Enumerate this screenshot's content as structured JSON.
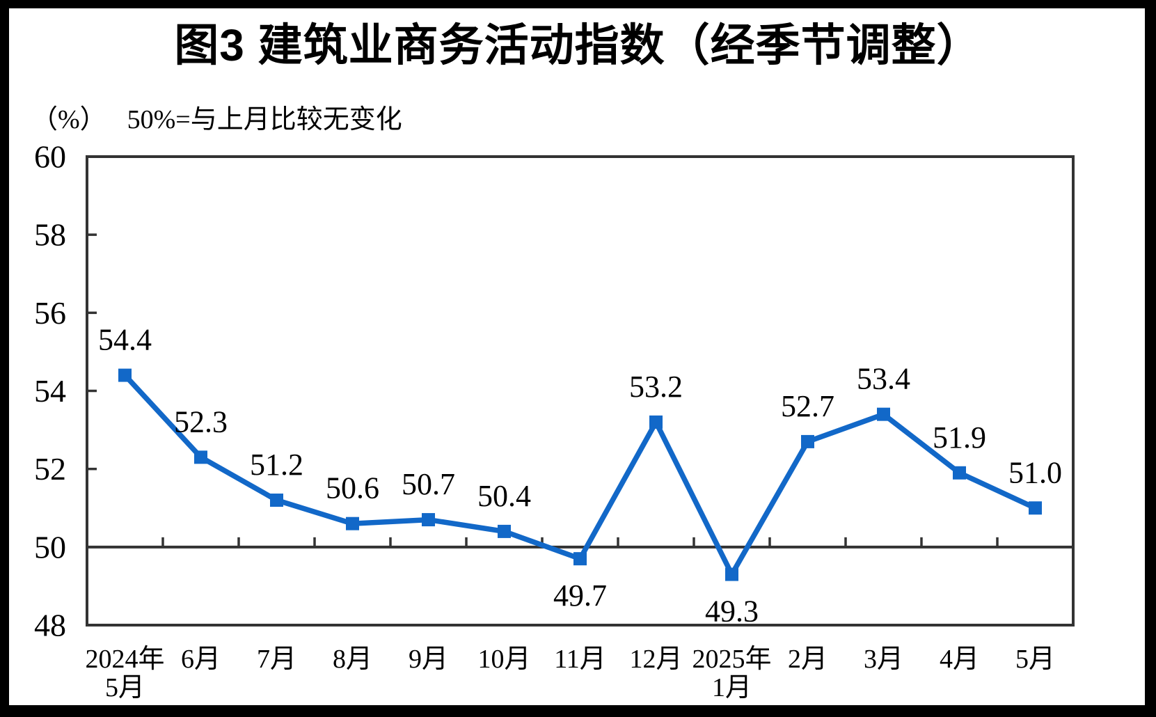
{
  "page": {
    "background": "#000000",
    "paper": "#ffffff"
  },
  "chart_data": {
    "type": "line",
    "title": "图3  建筑业商务活动指数（经季节调整）",
    "unit_label": "（%）",
    "annotation": "50%=与上月比较无变化",
    "categories": [
      [
        "2024年",
        "5月"
      ],
      [
        "6月"
      ],
      [
        "7月"
      ],
      [
        "8月"
      ],
      [
        "9月"
      ],
      [
        "10月"
      ],
      [
        "11月"
      ],
      [
        "12月"
      ],
      [
        "2025年",
        "1月"
      ],
      [
        "2月"
      ],
      [
        "3月"
      ],
      [
        "4月"
      ],
      [
        "5月"
      ]
    ],
    "values": [
      54.4,
      52.3,
      51.2,
      50.6,
      50.7,
      50.4,
      49.7,
      53.2,
      49.3,
      52.7,
      53.4,
      51.9,
      51.0
    ],
    "data_labels": [
      "54.4",
      "52.3",
      "51.2",
      "50.6",
      "50.7",
      "50.4",
      "49.7",
      "53.2",
      "49.3",
      "52.7",
      "53.4",
      "51.9",
      "51.0"
    ],
    "label_position": [
      "above",
      "above",
      "above",
      "above",
      "above",
      "above",
      "below",
      "above",
      "below",
      "above",
      "above",
      "above",
      "above"
    ],
    "ylim": [
      48,
      60
    ],
    "yticks": [
      48,
      50,
      52,
      54,
      56,
      58,
      60
    ],
    "ytick_labels": [
      "48",
      "50",
      "52",
      "54",
      "56",
      "58",
      "60"
    ],
    "reference_line": 50,
    "grid": false,
    "legend": "none",
    "marker": "square",
    "line_color": "#1268C8",
    "axis_color": "#333333",
    "text_color": "#000000"
  }
}
